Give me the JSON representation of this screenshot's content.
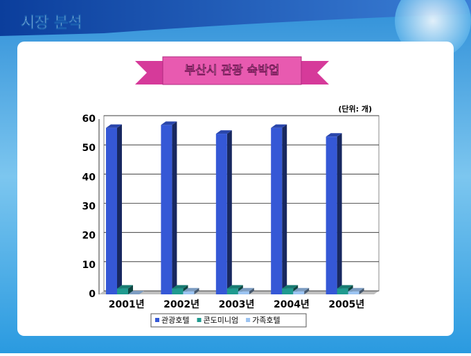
{
  "slide": {
    "title": "시장 분석"
  },
  "chart_data": {
    "type": "bar3d",
    "title": "부산시 관광 숙박업",
    "unit_note": "(단위: 개)",
    "categories": [
      "2001년",
      "2002년",
      "2003년",
      "2004년",
      "2005년"
    ],
    "series": [
      {
        "name": "관광호텔",
        "color": "#3558d6",
        "values": [
          57,
          58,
          55,
          57,
          54
        ]
      },
      {
        "name": "콘도미니엄",
        "color": "#1f9a8f",
        "values": [
          2,
          2,
          2,
          2,
          2
        ]
      },
      {
        "name": "가족호텔",
        "color": "#9cc4f2",
        "values": [
          0,
          1,
          1,
          1,
          1
        ]
      }
    ],
    "ylim": [
      0,
      60
    ],
    "yticks": [
      0,
      10,
      20,
      30,
      40,
      50,
      60
    ],
    "grid": true
  }
}
